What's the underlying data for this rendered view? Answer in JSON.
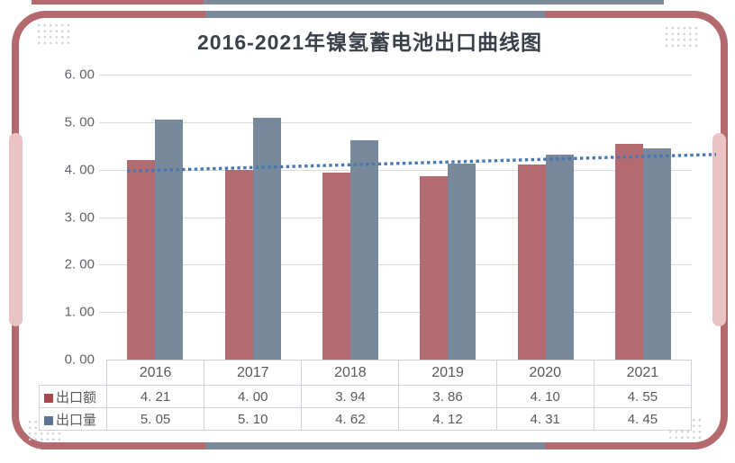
{
  "title": "2016-2021年镍氢蓄电池出口曲线图",
  "colors": {
    "frame": "#b4696f",
    "frame_accent": "#7d8b9d",
    "side_tab": "#eac3c5",
    "export_value_bar": "#b26b71",
    "export_volume_bar": "#78899c",
    "export_value_key": "#a8494e",
    "export_volume_key": "#5c7394",
    "trendline": "#4677b3",
    "gridline": "#dadada",
    "table_border": "#ccd3dc",
    "body_text": "#595959",
    "title_text": "#3a4149"
  },
  "chart_data": {
    "type": "bar",
    "title": "2016-2021年镍氢蓄电池出口曲线图",
    "categories": [
      "2016",
      "2017",
      "2018",
      "2019",
      "2020",
      "2021"
    ],
    "series": [
      {
        "key": "export-value",
        "name": "出口额",
        "values": [
          4.21,
          4.0,
          3.94,
          3.86,
          4.1,
          4.55
        ]
      },
      {
        "key": "export-volume",
        "name": "出口量",
        "values": [
          5.05,
          5.1,
          4.62,
          4.12,
          4.31,
          4.45
        ]
      }
    ],
    "trendline": {
      "v_start": 3.97,
      "v_end": 4.32
    },
    "ylim": [
      0,
      6
    ],
    "ytick_step": 1,
    "ytick_labels": [
      "0. 00",
      "1. 00",
      "2. 00",
      "3. 00",
      "4. 00",
      "5. 00",
      "6. 00"
    ],
    "grid": true,
    "legend_position": "table-left",
    "xlabel": "",
    "ylabel": ""
  }
}
